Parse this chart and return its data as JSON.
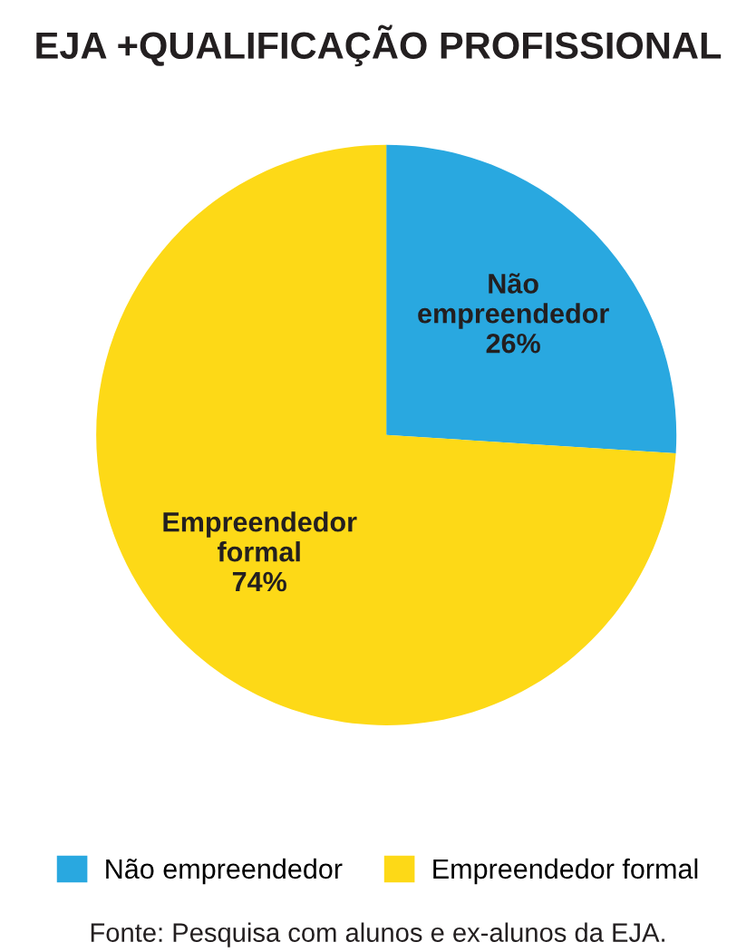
{
  "chart_data": {
    "type": "pie",
    "title": "EJA +QUALIFICAÇÃO PROFISSIONAL",
    "categories": [
      "Não empreendedor",
      "Empreendedor formal"
    ],
    "values": [
      26,
      74
    ],
    "colors": [
      "#29a8e0",
      "#fdd917"
    ],
    "value_labels": [
      "26%",
      "74%"
    ],
    "legend": "bottom",
    "annotations": [
      "Fonte: Pesquisa com alunos e ex-alunos da EJA."
    ]
  }
}
